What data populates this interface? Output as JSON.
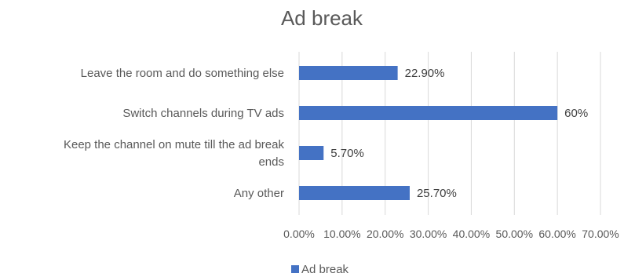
{
  "chart_data": {
    "type": "bar",
    "orientation": "horizontal",
    "title": "Ad break",
    "categories": [
      "Leave the room and do something else",
      "Switch channels during TV ads",
      "Keep the channel on mute till the ad break ends",
      "Any other"
    ],
    "category_label_lines": [
      [
        "Leave the room and do something else"
      ],
      [
        "Switch channels during TV ads"
      ],
      [
        "Keep the channel on mute till the ad break",
        "ends"
      ],
      [
        "Any other"
      ]
    ],
    "series": [
      {
        "name": "Ad break",
        "values": [
          0.229,
          0.6,
          0.057,
          0.257
        ],
        "data_labels": [
          "22.90%",
          "60%",
          "5.70%",
          "25.70%"
        ]
      }
    ],
    "xlim": [
      0,
      0.7
    ],
    "x_ticks": [
      0,
      0.1,
      0.2,
      0.3,
      0.4,
      0.5,
      0.6,
      0.7
    ],
    "x_tick_labels": [
      "0.00%",
      "10.00%",
      "20.00%",
      "30.00%",
      "40.00%",
      "50.00%",
      "60.00%",
      "70.00%"
    ],
    "grid": true,
    "legend": {
      "position": "bottom",
      "entries": [
        "Ad break"
      ]
    },
    "colors": {
      "bar": "#4472C4",
      "gridline": "#D9D9D9",
      "text": "#595959"
    }
  }
}
